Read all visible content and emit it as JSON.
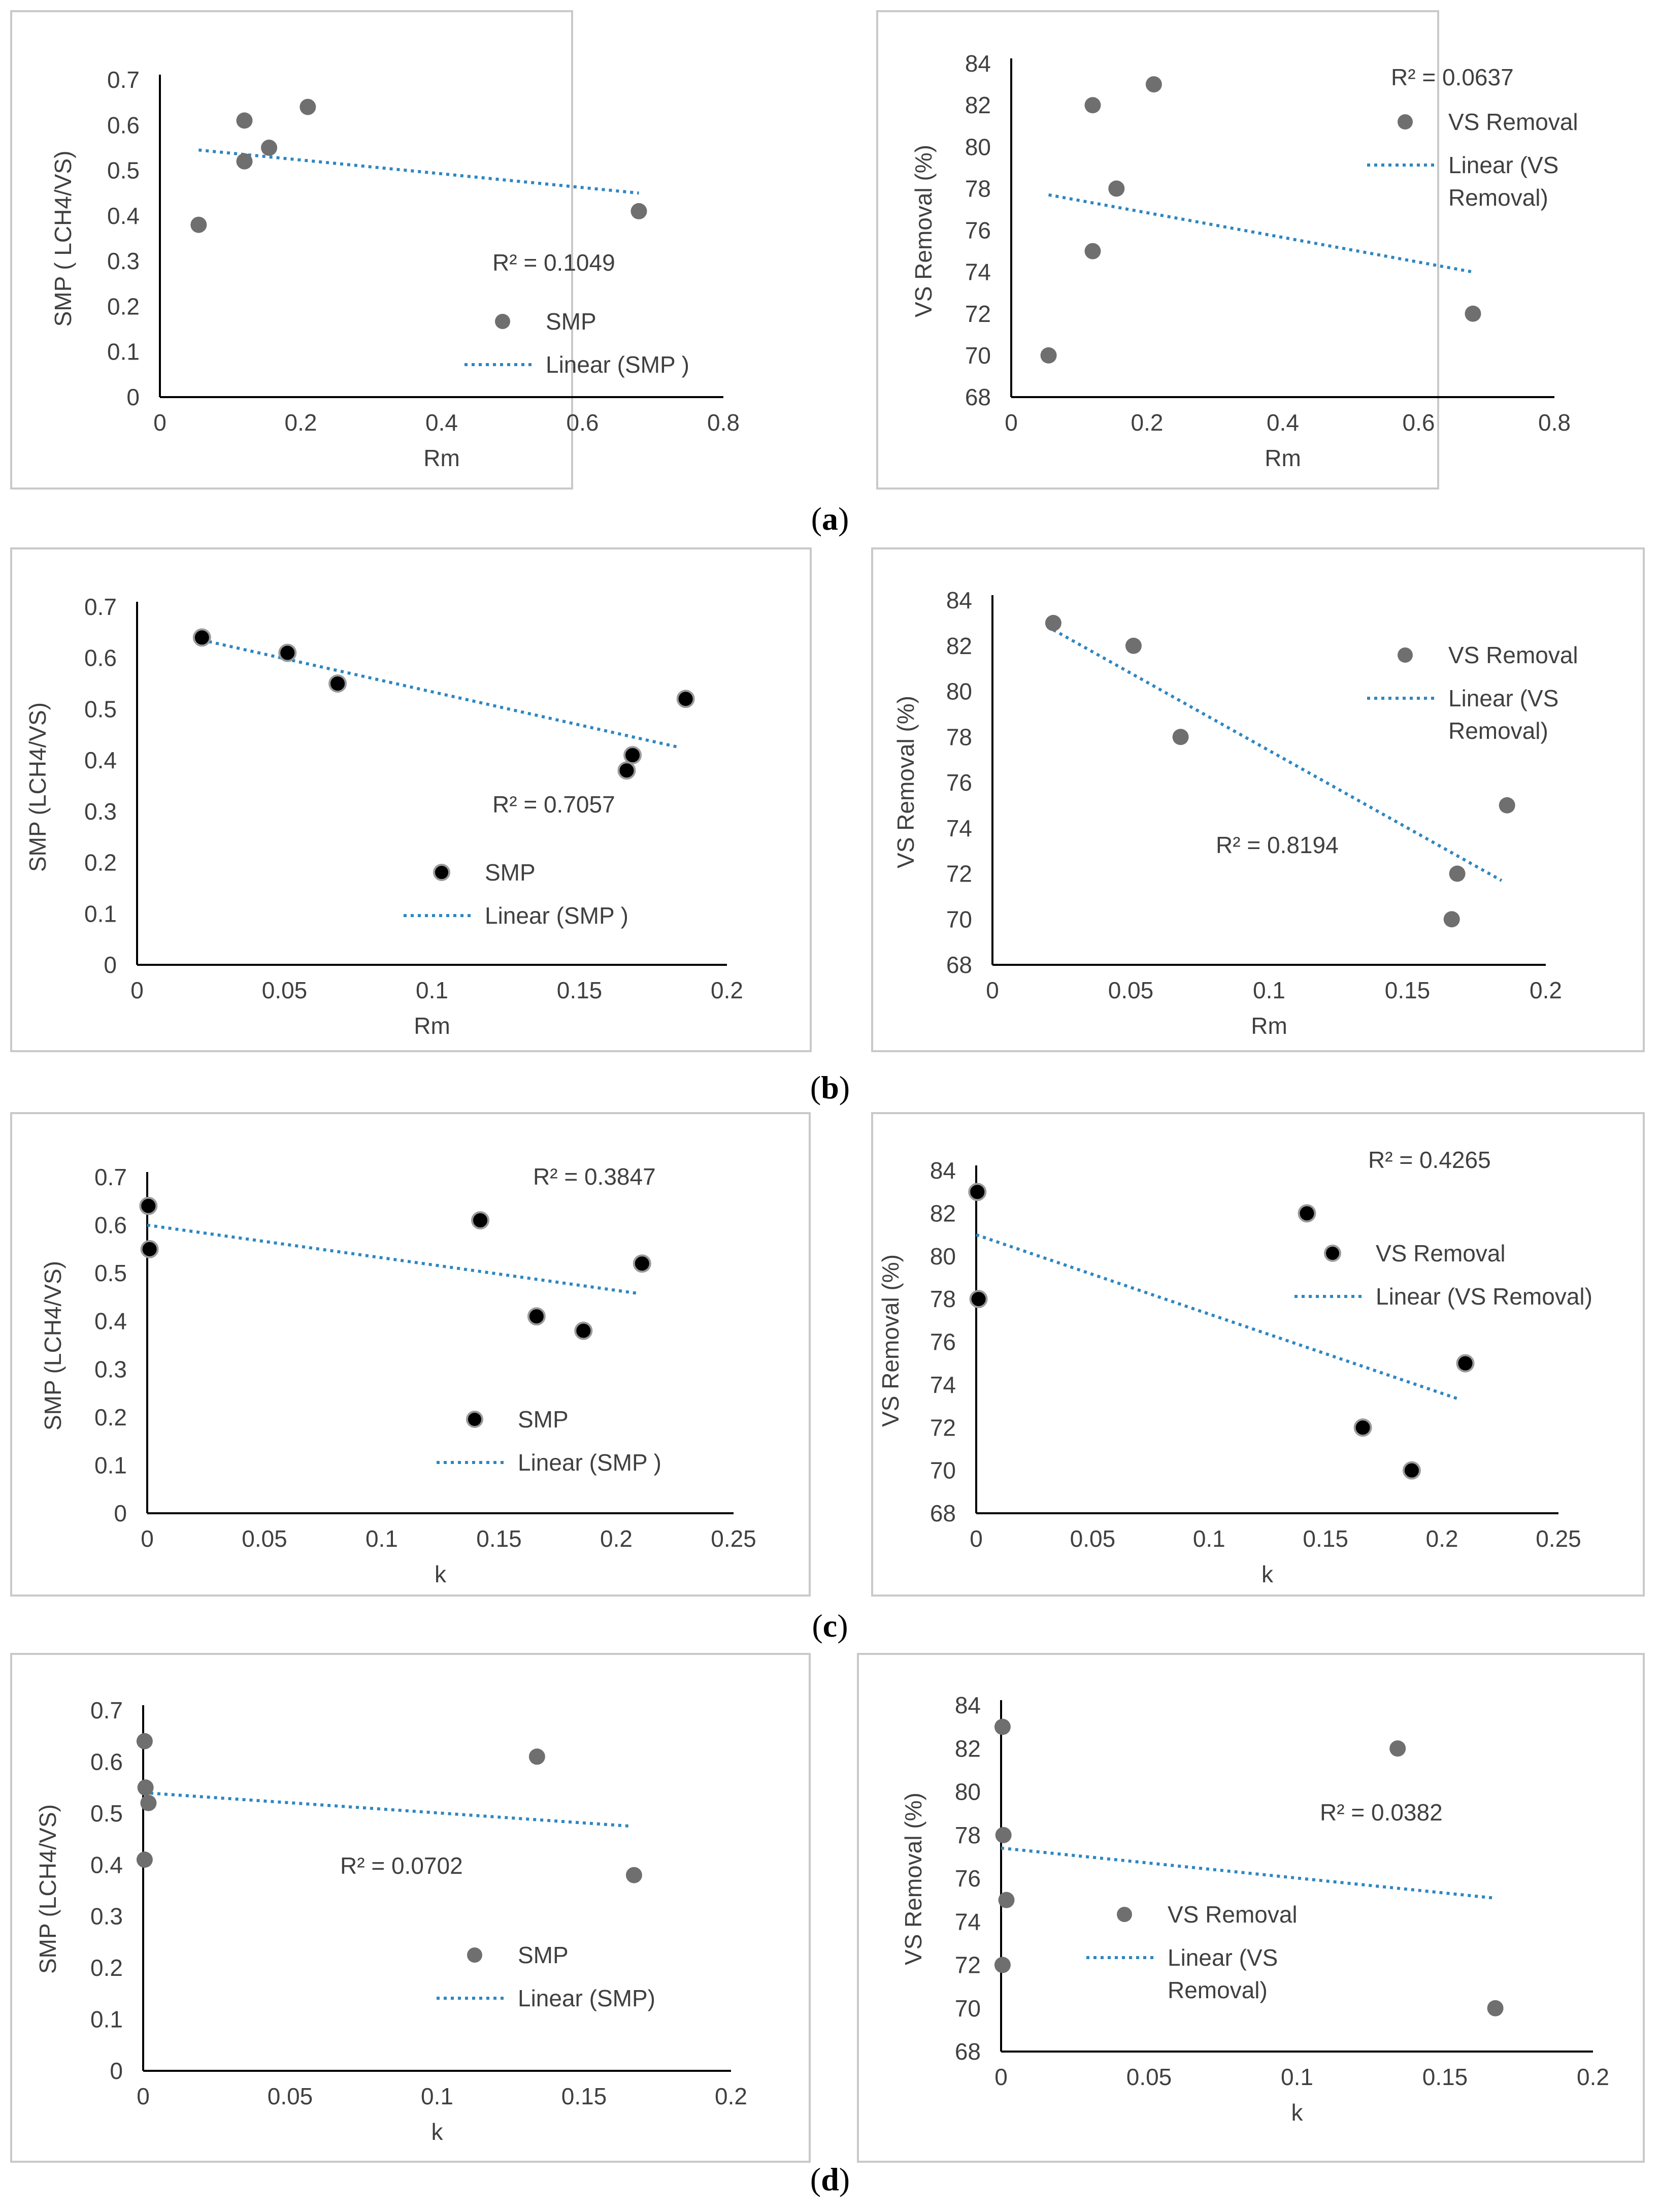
{
  "figure": {
    "captions": [
      "a",
      "b",
      "c",
      "d"
    ]
  },
  "colors": {
    "frame": "#c9c9c9",
    "axis": "#000000",
    "trend": "#2e86c1",
    "marker_gray": "#6f6f6f",
    "marker_black": "#000000",
    "text": "#404040"
  },
  "chart_data": [
    {
      "id": "a-left",
      "type": "scatter",
      "title": "",
      "xlabel": "Rm",
      "ylabel": "SMP ( LCH4/VS)",
      "xlim": [
        0,
        0.8
      ],
      "ylim": [
        0,
        0.7
      ],
      "xticks": [
        "0",
        "0.2",
        "0.4",
        "0.6",
        "0.8"
      ],
      "yticks": [
        "0",
        "0.1",
        "0.2",
        "0.3",
        "0.4",
        "0.5",
        "0.6",
        "0.7"
      ],
      "series": [
        {
          "name": "SMP",
          "marker": "gray",
          "x": [
            0.055,
            0.12,
            0.12,
            0.155,
            0.21,
            0.68
          ],
          "y": [
            0.38,
            0.52,
            0.61,
            0.55,
            0.64,
            0.41
          ]
        }
      ],
      "trendline": {
        "name": "Linear (SMP )",
        "x": [
          0.055,
          0.68
        ],
        "y": [
          0.545,
          0.45
        ]
      },
      "r2": "R² = 0.1049",
      "legend": [
        {
          "label": "SMP",
          "kind": "marker"
        },
        {
          "label": "Linear (SMP )",
          "kind": "line"
        }
      ]
    },
    {
      "id": "a-right",
      "type": "scatter",
      "title": "",
      "xlabel": "Rm",
      "ylabel": "VS Removal (%)",
      "xlim": [
        0,
        0.8
      ],
      "ylim": [
        68,
        84
      ],
      "xticks": [
        "0",
        "0.2",
        "0.4",
        "0.6",
        "0.8"
      ],
      "yticks": [
        "68",
        "70",
        "72",
        "74",
        "76",
        "78",
        "80",
        "82",
        "84"
      ],
      "series": [
        {
          "name": "VS Removal",
          "marker": "gray",
          "x": [
            0.055,
            0.12,
            0.12,
            0.155,
            0.21,
            0.68
          ],
          "y": [
            70,
            75,
            82,
            78,
            83,
            72
          ]
        }
      ],
      "trendline": {
        "name": "Linear (VS Removal)",
        "x": [
          0.055,
          0.68
        ],
        "y": [
          77.7,
          74.0
        ]
      },
      "r2": "R² = 0.0637",
      "legend": [
        {
          "label": "VS Removal",
          "kind": "marker"
        },
        {
          "label": [
            "Linear (VS",
            "Removal)"
          ],
          "kind": "line"
        }
      ]
    },
    {
      "id": "b-left",
      "type": "scatter",
      "title": "",
      "xlabel": "Rm",
      "ylabel": "SMP (LCH4/VS)",
      "xlim": [
        0,
        0.2
      ],
      "ylim": [
        0,
        0.7
      ],
      "xticks": [
        "0",
        "0.05",
        "0.1",
        "0.15",
        "0.2"
      ],
      "yticks": [
        "0",
        "0.1",
        "0.2",
        "0.3",
        "0.4",
        "0.5",
        "0.6",
        "0.7"
      ],
      "series": [
        {
          "name": "SMP",
          "marker": "black",
          "x": [
            0.022,
            0.051,
            0.068,
            0.166,
            0.168,
            0.186
          ],
          "y": [
            0.64,
            0.61,
            0.55,
            0.38,
            0.41,
            0.52
          ]
        }
      ],
      "trendline": {
        "name": "Linear (SMP )",
        "x": [
          0.022,
          0.184
        ],
        "y": [
          0.635,
          0.425
        ]
      },
      "r2": "R² = 0.7057",
      "legend": [
        {
          "label": "SMP",
          "kind": "marker"
        },
        {
          "label": "Linear (SMP )",
          "kind": "line"
        }
      ]
    },
    {
      "id": "b-right",
      "type": "scatter",
      "title": "",
      "xlabel": "Rm",
      "ylabel": "VS Removal (%)",
      "xlim": [
        0,
        0.2
      ],
      "ylim": [
        68,
        84
      ],
      "xticks": [
        "0",
        "0.05",
        "0.1",
        "0.15",
        "0.2"
      ],
      "yticks": [
        "68",
        "70",
        "72",
        "74",
        "76",
        "78",
        "80",
        "82",
        "84"
      ],
      "series": [
        {
          "name": "VS Removal",
          "marker": "gray",
          "x": [
            0.022,
            0.051,
            0.068,
            0.166,
            0.168,
            0.186
          ],
          "y": [
            83,
            82,
            78,
            70,
            72,
            75
          ]
        }
      ],
      "trendline": {
        "name": "Linear (VS Removal)",
        "x": [
          0.022,
          0.184
        ],
        "y": [
          82.7,
          71.7
        ]
      },
      "r2": "R² = 0.8194",
      "legend": [
        {
          "label": "VS Removal",
          "kind": "marker"
        },
        {
          "label": [
            "Linear (VS",
            "Removal)"
          ],
          "kind": "line"
        }
      ]
    },
    {
      "id": "c-left",
      "type": "scatter",
      "title": "",
      "xlabel": "k",
      "ylabel": "SMP (LCH4/VS)",
      "xlim": [
        0,
        0.25
      ],
      "ylim": [
        0,
        0.7
      ],
      "xticks": [
        "0",
        "0.05",
        "0.1",
        "0.15",
        "0.2",
        "0.25"
      ],
      "yticks": [
        "0",
        "0.1",
        "0.2",
        "0.3",
        "0.4",
        "0.5",
        "0.6",
        "0.7"
      ],
      "series": [
        {
          "name": "SMP",
          "marker": "black",
          "x": [
            0.0005,
            0.001,
            0.142,
            0.166,
            0.186,
            0.211
          ],
          "y": [
            0.64,
            0.55,
            0.61,
            0.41,
            0.38,
            0.52
          ]
        }
      ],
      "trendline": {
        "name": "Linear (SMP )",
        "x": [
          0.0,
          0.209
        ],
        "y": [
          0.6,
          0.458
        ]
      },
      "r2": "R² = 0.3847",
      "legend": [
        {
          "label": "SMP",
          "kind": "marker"
        },
        {
          "label": "Linear (SMP )",
          "kind": "line"
        }
      ]
    },
    {
      "id": "c-right",
      "type": "scatter",
      "title": "",
      "xlabel": "k",
      "ylabel": "VS Removal (%)",
      "xlim": [
        0,
        0.25
      ],
      "ylim": [
        68,
        84
      ],
      "xticks": [
        "0",
        "0.05",
        "0.1",
        "0.15",
        "0.2",
        "0.25"
      ],
      "yticks": [
        "68",
        "70",
        "72",
        "74",
        "76",
        "78",
        "80",
        "82",
        "84"
      ],
      "series": [
        {
          "name": "VS Removal",
          "marker": "black",
          "x": [
            0.0005,
            0.001,
            0.142,
            0.166,
            0.187,
            0.21
          ],
          "y": [
            83,
            78,
            82,
            72,
            70,
            75
          ]
        }
      ],
      "trendline": {
        "name": "Linear (VS Removal)",
        "x": [
          0.0,
          0.208
        ],
        "y": [
          81.0,
          73.3
        ]
      },
      "r2": "R² = 0.4265",
      "legend": [
        {
          "label": "VS Removal",
          "kind": "marker"
        },
        {
          "label": "Linear (VS Removal)",
          "kind": "line"
        }
      ]
    },
    {
      "id": "d-left",
      "type": "scatter",
      "title": "",
      "xlabel": "k",
      "ylabel": "SMP (LCH4/VS)",
      "xlim": [
        0,
        0.2
      ],
      "ylim": [
        0,
        0.7
      ],
      "xticks": [
        "0",
        "0.05",
        "0.1",
        "0.15",
        "0.2"
      ],
      "yticks": [
        "0",
        "0.1",
        "0.2",
        "0.3",
        "0.4",
        "0.5",
        "0.6",
        "0.7"
      ],
      "series": [
        {
          "name": "SMP",
          "marker": "gray",
          "x": [
            0.0005,
            0.0008,
            0.0018,
            0.0005,
            0.134,
            0.167
          ],
          "y": [
            0.64,
            0.55,
            0.52,
            0.41,
            0.61,
            0.38
          ]
        }
      ],
      "trendline": {
        "name": "Linear (SMP)",
        "x": [
          0.0,
          0.166
        ],
        "y": [
          0.54,
          0.475
        ]
      },
      "r2": "R² = 0.0702",
      "legend": [
        {
          "label": "SMP",
          "kind": "marker"
        },
        {
          "label": "Linear (SMP)",
          "kind": "line"
        }
      ]
    },
    {
      "id": "d-right",
      "type": "scatter",
      "title": "",
      "xlabel": "k",
      "ylabel": "VS Removal (%)",
      "xlim": [
        0,
        0.2
      ],
      "ylim": [
        68,
        84
      ],
      "xticks": [
        "0",
        "0.05",
        "0.1",
        "0.15",
        "0.2"
      ],
      "yticks": [
        "68",
        "70",
        "72",
        "74",
        "76",
        "78",
        "80",
        "82",
        "84"
      ],
      "series": [
        {
          "name": "VS Removal",
          "marker": "gray",
          "x": [
            0.0005,
            0.0008,
            0.0018,
            0.0005,
            0.134,
            0.167
          ],
          "y": [
            83,
            78,
            75,
            72,
            82,
            70
          ]
        }
      ],
      "trendline": {
        "name": "Linear (VS Removal)",
        "x": [
          0.0,
          0.166
        ],
        "y": [
          77.4,
          75.1
        ]
      },
      "r2": "R² = 0.0382",
      "legend": [
        {
          "label": "VS Removal",
          "kind": "marker"
        },
        {
          "label": [
            "Linear (VS",
            "Removal)"
          ],
          "kind": "line"
        }
      ]
    }
  ]
}
